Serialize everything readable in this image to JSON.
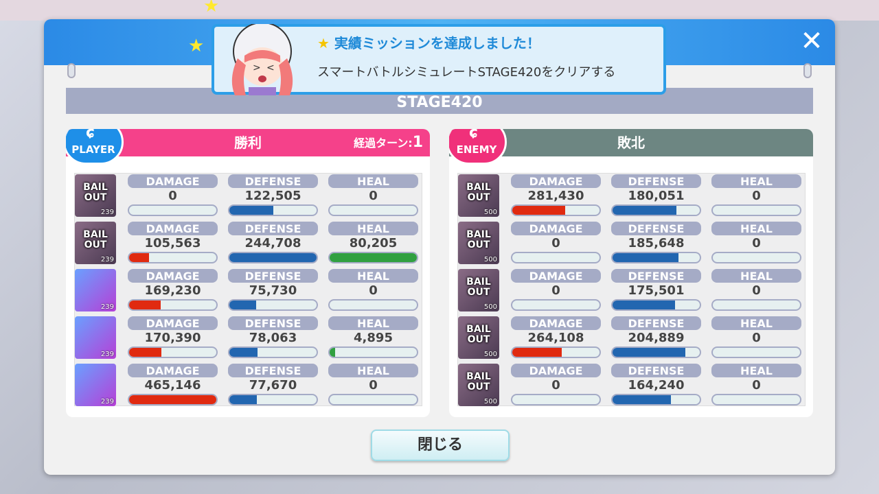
{
  "notification": {
    "title": "実績ミッションを達成しました！",
    "text": "スマートバトルシミュレートSTAGE420をクリアする"
  },
  "stage": "STAGE420",
  "player": {
    "badge": "PLAYER",
    "result": "勝利",
    "turn_label": "経過ターン:",
    "turn_value": "1",
    "color": "#f5418a",
    "rows": [
      {
        "status": "BAIL OUT",
        "level": "239",
        "damage": "0",
        "defense": "122,505",
        "heal": "0"
      },
      {
        "status": "BAIL OUT",
        "level": "239",
        "damage": "105,563",
        "defense": "244,708",
        "heal": "80,205"
      },
      {
        "status": "",
        "level": "239",
        "damage": "169,230",
        "defense": "75,730",
        "heal": "0"
      },
      {
        "status": "",
        "level": "239",
        "damage": "170,390",
        "defense": "78,063",
        "heal": "4,895"
      },
      {
        "status": "",
        "level": "239",
        "damage": "465,146",
        "defense": "77,670",
        "heal": "0"
      }
    ]
  },
  "enemy": {
    "badge": "ENEMY",
    "result": "敗北",
    "color": "#6d8682",
    "rows": [
      {
        "status": "BAIL OUT",
        "level": "500",
        "damage": "281,430",
        "defense": "180,051",
        "heal": "0"
      },
      {
        "status": "BAIL OUT",
        "level": "500",
        "damage": "0",
        "defense": "185,648",
        "heal": "0"
      },
      {
        "status": "BAIL OUT",
        "level": "500",
        "damage": "0",
        "defense": "175,501",
        "heal": "0"
      },
      {
        "status": "BAIL OUT",
        "level": "500",
        "damage": "264,108",
        "defense": "204,889",
        "heal": "0"
      },
      {
        "status": "BAIL OUT",
        "level": "500",
        "damage": "0",
        "defense": "164,240",
        "heal": "0"
      }
    ]
  },
  "columns": {
    "damage": "DAMAGE",
    "defense": "DEFENSE",
    "heal": "HEAL"
  },
  "bar_colors": {
    "damage": "#e02a10",
    "defense": "#2266b0",
    "heal": "#30a040"
  },
  "close_label": "閉じる",
  "close_icon": "close-icon"
}
